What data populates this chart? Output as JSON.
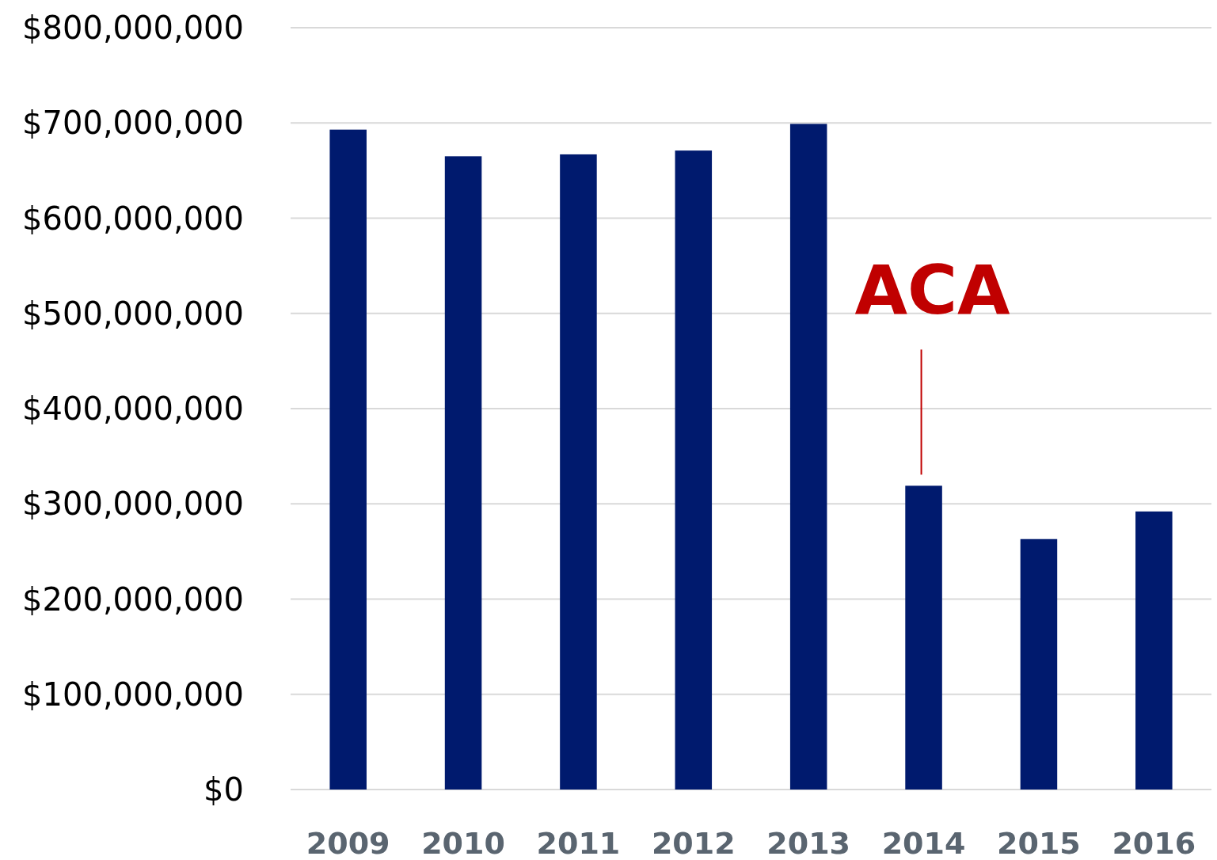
{
  "chart_data": {
    "type": "bar",
    "categories": [
      "2009",
      "2010",
      "2011",
      "2012",
      "2013",
      "2014",
      "2015",
      "2016"
    ],
    "series": [
      {
        "color": "#001a6e",
        "values": [
          693000000,
          665000000,
          667000000,
          671000000,
          699000000,
          319000000,
          263000000,
          292000000
        ]
      }
    ],
    "ylim": [
      0,
      800000000
    ],
    "yticks": [
      {
        "value": 0,
        "label": "$0"
      },
      {
        "value": 100000000,
        "label": "$100,000,000"
      },
      {
        "value": 200000000,
        "label": "$200,000,000"
      },
      {
        "value": 300000000,
        "label": "$300,000,000"
      },
      {
        "value": 400000000,
        "label": "$400,000,000"
      },
      {
        "value": 500000000,
        "label": "$500,000,000"
      },
      {
        "value": 600000000,
        "label": "$600,000,000"
      },
      {
        "value": 700000000,
        "label": "$700,000,000"
      },
      {
        "value": 800000000,
        "label": "$800,000,000"
      }
    ],
    "grid": "y",
    "annotations": [
      {
        "text": "ACA",
        "x": "2014",
        "y": 319000000
      }
    ]
  }
}
